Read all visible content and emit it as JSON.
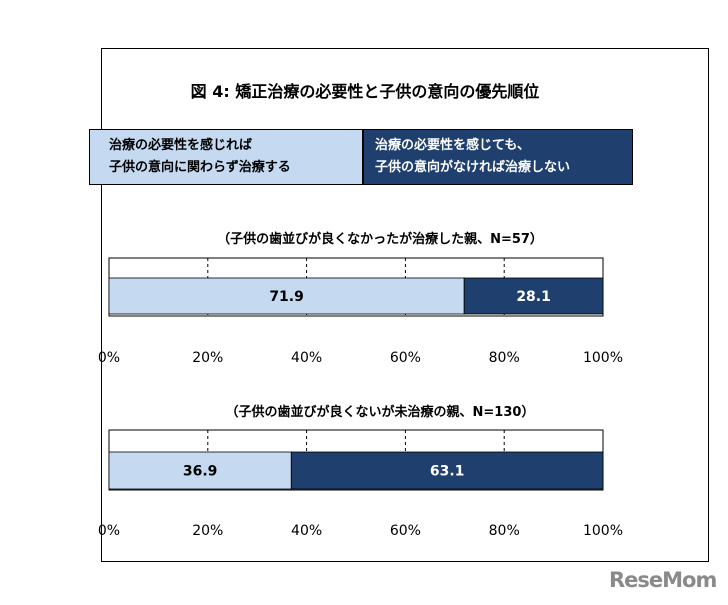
{
  "title": "図 4:  矯正治療の必要性と子供の意向の優先順位",
  "legend": {
    "left_line1": "治療の必要性を感じれば",
    "left_line2": "子供の意向に関わらず治療する",
    "right_line1": "治療の必要性を感じても、",
    "right_line2": "子供の意向がなければ治療しない"
  },
  "colors": {
    "light": "#c5d9f1",
    "dark": "#1f3f6e"
  },
  "watermark": "ReseMom",
  "chart_data": [
    {
      "type": "bar",
      "orientation": "horizontal-stacked",
      "title": "（子供の歯並びが良くなかったが治療した親、N=57）",
      "series": [
        {
          "name": "治療の必要性を感じれば子供の意向に関わらず治療する",
          "values": [
            71.9
          ]
        },
        {
          "name": "治療の必要性を感じても、子供の意向がなければ治療しない",
          "values": [
            28.1
          ]
        }
      ],
      "data_labels": [
        "71.9",
        "28.1"
      ],
      "xlim": [
        0,
        100
      ],
      "tick_labels": [
        "0%",
        "20%",
        "40%",
        "60%",
        "80%",
        "100%"
      ],
      "grid": "dashed vertical"
    },
    {
      "type": "bar",
      "orientation": "horizontal-stacked",
      "title": "（子供の歯並びが良くないが未治療の親、N=130）",
      "series": [
        {
          "name": "治療の必要性を感じれば子供の意向に関わらず治療する",
          "values": [
            36.9
          ]
        },
        {
          "name": "治療の必要性を感じても、子供の意向がなければ治療しない",
          "values": [
            63.1
          ]
        }
      ],
      "data_labels": [
        "36.9",
        "63.1"
      ],
      "xlim": [
        0,
        100
      ],
      "tick_labels": [
        "0%",
        "20%",
        "40%",
        "60%",
        "80%",
        "100%"
      ],
      "grid": "dashed vertical"
    }
  ]
}
